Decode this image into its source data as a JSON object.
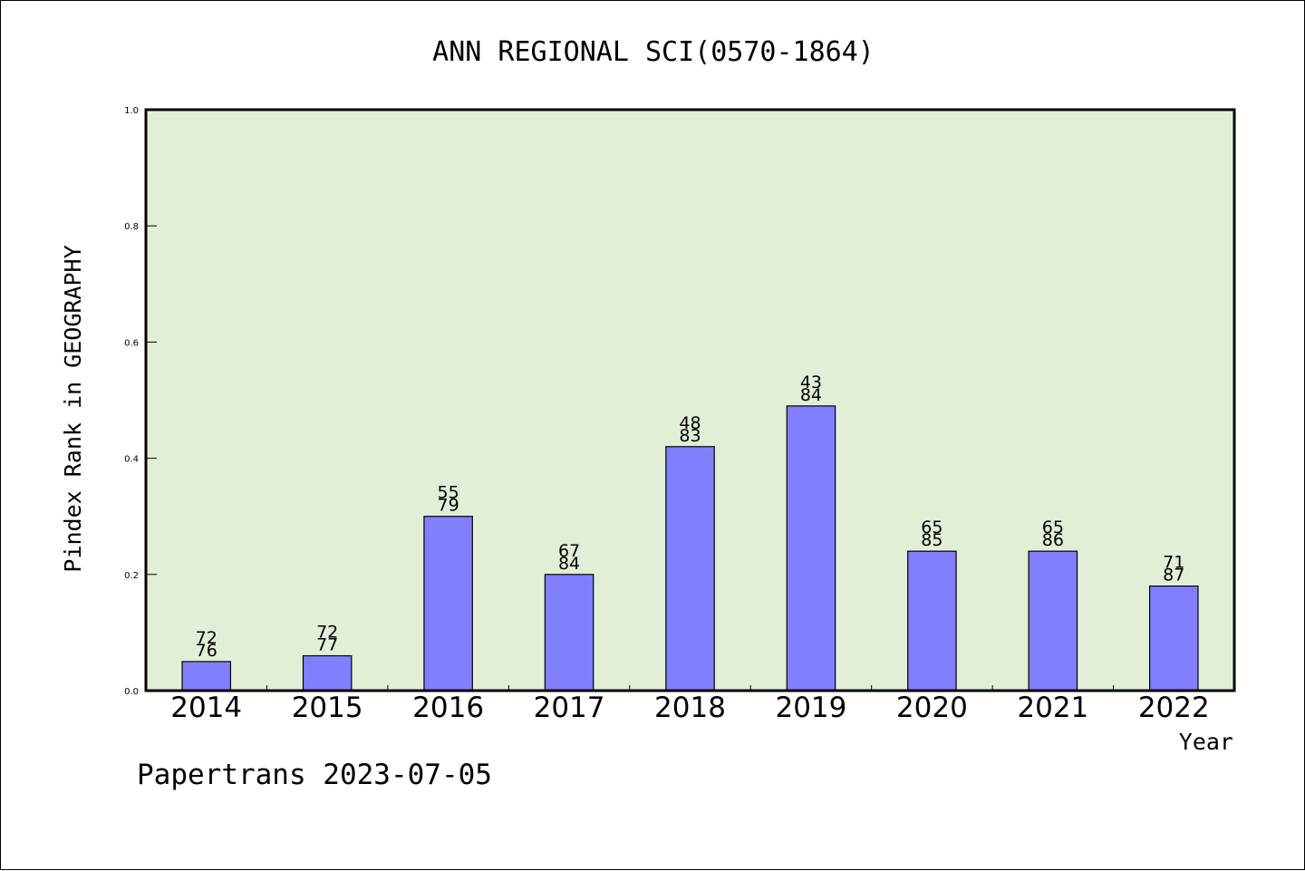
{
  "chart_data": {
    "type": "bar",
    "title": "ANN REGIONAL SCI(0570-1864)",
    "xlabel": "Year",
    "ylabel": "Pindex Rank in GEOGRAPHY",
    "ylim": [
      0.0,
      1.0
    ],
    "yticks": [
      "0.0",
      "0.2",
      "0.4",
      "0.6",
      "0.8",
      "1.0"
    ],
    "categories": [
      "2014",
      "2015",
      "2016",
      "2017",
      "2018",
      "2019",
      "2020",
      "2021",
      "2022"
    ],
    "values": [
      0.05,
      0.06,
      0.3,
      0.2,
      0.42,
      0.49,
      0.24,
      0.24,
      0.18
    ],
    "label_top": [
      "72",
      "72",
      "55",
      "67",
      "48",
      "43",
      "65",
      "65",
      "71"
    ],
    "label_bottom": [
      "76",
      "77",
      "79",
      "84",
      "83",
      "84",
      "85",
      "86",
      "87"
    ],
    "grid": false,
    "legend": "none",
    "colors": {
      "plot_background": "#e2efd6",
      "bar_fill": "#8080ff",
      "bar_stroke": "#000000"
    }
  },
  "footer": {
    "credit": "Papertrans 2023-07-05"
  }
}
